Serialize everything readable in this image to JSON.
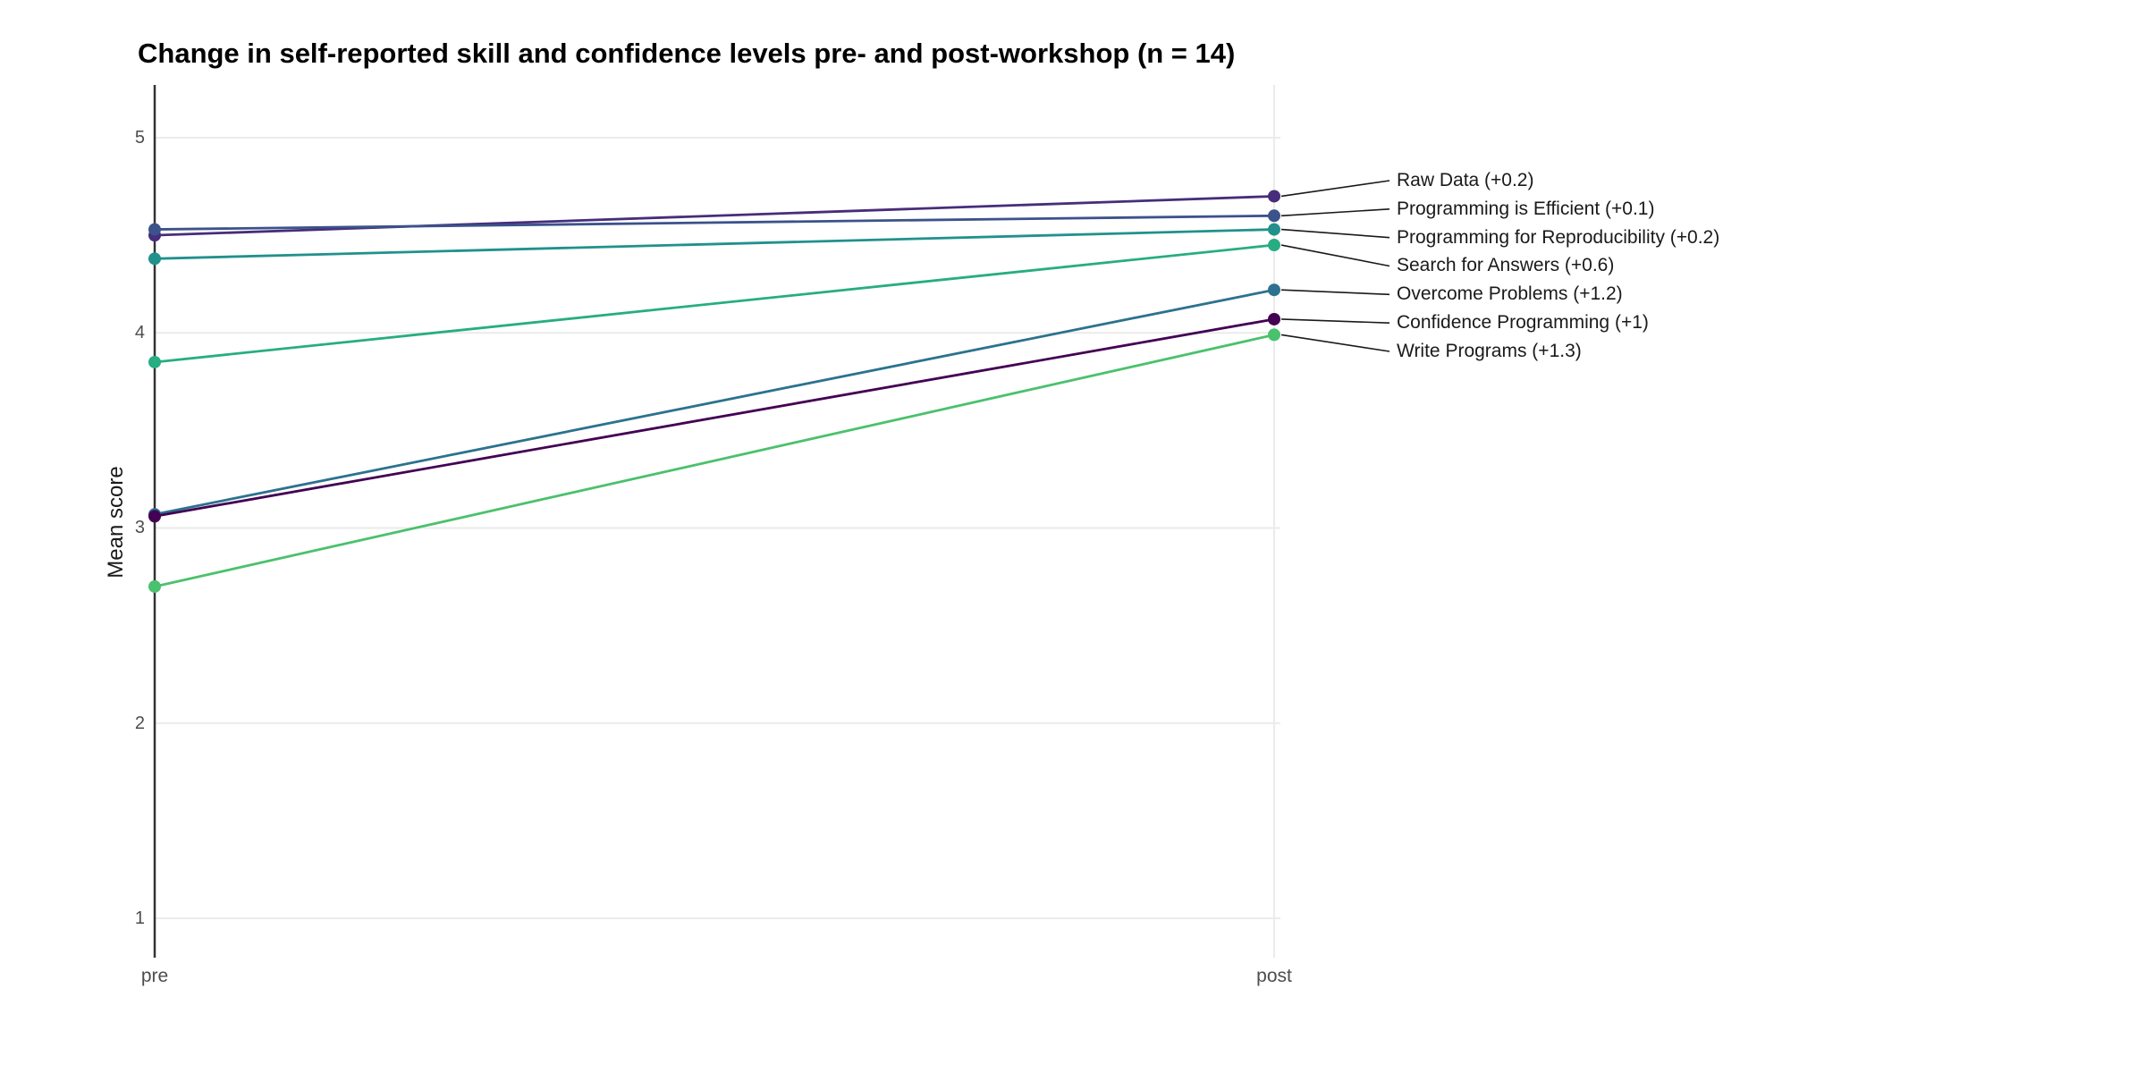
{
  "title": "Change in self-reported skill and confidence levels pre- and post-workshop (n = 14)",
  "chart_data": {
    "type": "line",
    "subtype": "slope-chart",
    "x_categories": [
      "pre",
      "post"
    ],
    "xlabel": "",
    "ylabel": "Mean score",
    "y_ticks": [
      "5",
      "4",
      "3",
      "2",
      "1"
    ],
    "ylim": [
      0.8,
      5.27
    ],
    "grid": true,
    "legend_position": "right-annotations",
    "grid_color": "#ebebeb",
    "axis_line_color": "#333333",
    "tick_text_color": "#4d4d4d",
    "annotation_text_color": "#1a1a1a",
    "series": [
      {
        "name": "Raw Data",
        "delta_label": "+0.2",
        "annotation": "Raw Data (+0.2)",
        "pre": 4.5,
        "post": 4.7,
        "color": "#472d7b"
      },
      {
        "name": "Programming is Efficient",
        "delta_label": "+0.1",
        "annotation": "Programming is Efficient (+0.1)",
        "pre": 4.53,
        "post": 4.6,
        "color": "#3b528b"
      },
      {
        "name": "Programming for Reproducibility",
        "delta_label": "+0.2",
        "annotation": "Programming for Reproducibility (+0.2)",
        "pre": 4.38,
        "post": 4.53,
        "color": "#21918c"
      },
      {
        "name": "Search for Answers",
        "delta_label": "+0.6",
        "annotation": "Search for Answers (+0.6)",
        "pre": 3.85,
        "post": 4.45,
        "color": "#27ad81"
      },
      {
        "name": "Overcome Problems",
        "delta_label": "+1.2",
        "annotation": "Overcome Problems (+1.2)",
        "pre": 3.07,
        "post": 4.22,
        "color": "#2c728e"
      },
      {
        "name": "Confidence Programming",
        "delta_label": "+1",
        "annotation": "Confidence Programming (+1)",
        "pre": 3.06,
        "post": 4.07,
        "color": "#440154"
      },
      {
        "name": "Write Programs",
        "delta_label": "+1.3",
        "annotation": "Write Programs (+1.3)",
        "pre": 2.7,
        "post": 3.99,
        "color": "#4ac16d"
      }
    ]
  }
}
